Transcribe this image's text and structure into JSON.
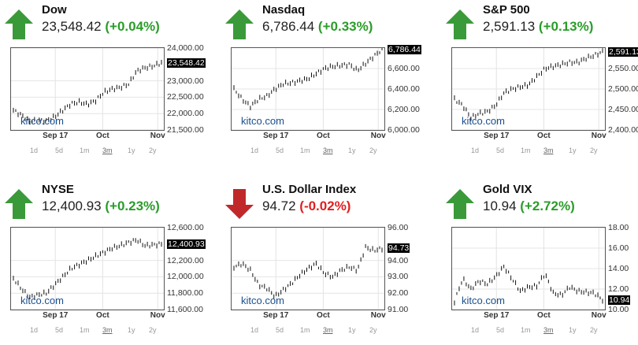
{
  "colors": {
    "up": "#2a9d2a",
    "down": "#e02020",
    "arrow_up": "#3a9a3a",
    "arrow_down": "#c0282a"
  },
  "ranges": [
    "1d",
    "5d",
    "1m",
    "3m",
    "1y",
    "2y"
  ],
  "selected_range": "3m",
  "logo": "kitco.com",
  "panels": [
    {
      "title": "Dow",
      "price": "23,548.42",
      "change": "(+0.04%)",
      "direction": "up",
      "chart_data": {
        "type": "ohlc",
        "ylim": [
          21500,
          24000
        ],
        "yticks": [
          "24,000.00",
          "23,000.00",
          "22,500.00",
          "22,000.00",
          "21,500.00"
        ],
        "ytick_values": [
          24000,
          23000,
          22500,
          22000,
          21500
        ],
        "last_label": "23,548.42",
        "last": 23548.42,
        "xticks": [
          "Sep 17",
          "Oct",
          "Nov"
        ],
        "values": [
          22100,
          21950,
          21750,
          21800,
          21780,
          21900,
          22100,
          22300,
          22350,
          22280,
          22400,
          22650,
          22750,
          22800,
          22900,
          23300,
          23400,
          23450,
          23548
        ]
      }
    },
    {
      "title": "Nasdaq",
      "price": "6,786.44",
      "change": "(+0.33%)",
      "direction": "up",
      "chart_data": {
        "type": "ohlc",
        "ylim": [
          6000,
          6800
        ],
        "yticks": [
          "6,600.00",
          "6,400.00",
          "6,200.00",
          "6,000.00"
        ],
        "ytick_values": [
          6600,
          6400,
          6200,
          6000
        ],
        "last_label": "6,786.44",
        "last": 6786.44,
        "xticks": [
          "Sep 17",
          "Oct",
          "Nov"
        ],
        "values": [
          6400,
          6300,
          6230,
          6300,
          6330,
          6400,
          6450,
          6460,
          6480,
          6500,
          6550,
          6600,
          6620,
          6630,
          6640,
          6580,
          6650,
          6720,
          6786
        ]
      }
    },
    {
      "title": "S&P 500",
      "price": "2,591.13",
      "change": "(+0.13%)",
      "direction": "up",
      "chart_data": {
        "type": "ohlc",
        "ylim": [
          2400,
          2600
        ],
        "yticks": [
          "2,550.00",
          "2,500.00",
          "2,450.00",
          "2,400.00"
        ],
        "ytick_values": [
          2550,
          2500,
          2450,
          2400
        ],
        "last_label": "2,591.13",
        "last": 2591.13,
        "xticks": [
          "Sep 17",
          "Oct",
          "Nov"
        ],
        "values": [
          2475,
          2460,
          2430,
          2440,
          2445,
          2460,
          2490,
          2500,
          2505,
          2510,
          2530,
          2550,
          2555,
          2560,
          2565,
          2565,
          2575,
          2582,
          2591
        ]
      }
    },
    {
      "title": "NYSE",
      "price": "12,400.93",
      "change": "(+0.23%)",
      "direction": "up",
      "chart_data": {
        "type": "ohlc",
        "ylim": [
          11600,
          12600
        ],
        "yticks": [
          "12,600.00",
          "12,200.00",
          "12,000.00",
          "11,800.00",
          "11,600.00"
        ],
        "ytick_values": [
          12600,
          12200,
          12000,
          11800,
          11600
        ],
        "last_label": "12,400.93",
        "last": 12400.93,
        "xticks": [
          "Sep 17",
          "Oct",
          "Nov"
        ],
        "values": [
          11980,
          11850,
          11750,
          11780,
          11800,
          11900,
          12000,
          12100,
          12150,
          12200,
          12250,
          12300,
          12350,
          12380,
          12420,
          12450,
          12380,
          12390,
          12401
        ]
      }
    },
    {
      "title": "U.S. Dollar Index",
      "price": "94.72",
      "change": "(-0.02%)",
      "direction": "down",
      "chart_data": {
        "type": "ohlc",
        "ylim": [
          91,
          96
        ],
        "yticks": [
          "96.00",
          "94.00",
          "93.00",
          "92.00",
          "91.00"
        ],
        "ytick_values": [
          96,
          94,
          93,
          92,
          91
        ],
        "last_label": "94.73",
        "last": 94.73,
        "xticks": [
          "Sep 17",
          "Oct",
          "Nov"
        ],
        "values": [
          93.6,
          93.8,
          93.4,
          92.5,
          92.3,
          91.8,
          92.2,
          92.6,
          93.1,
          93.5,
          93.8,
          93.2,
          93.0,
          93.4,
          93.6,
          93.4,
          94.8,
          94.6,
          94.73
        ]
      }
    },
    {
      "title": "Gold VIX",
      "price": "10.94",
      "change": "(+2.72%)",
      "direction": "up",
      "chart_data": {
        "type": "ohlc",
        "ylim": [
          10,
          18
        ],
        "yticks": [
          "18.00",
          "16.00",
          "14.00",
          "12.00",
          "10.00"
        ],
        "ytick_values": [
          18,
          16,
          14,
          12,
          10
        ],
        "last_label": "10.94",
        "last": 10.94,
        "xticks": [
          "Sep 17",
          "Oct",
          "Nov"
        ],
        "values": [
          10.8,
          13.0,
          12.0,
          12.8,
          12.5,
          13.2,
          14.2,
          13.0,
          11.8,
          12.2,
          12.3,
          13.5,
          11.6,
          11.4,
          12.2,
          11.8,
          11.7,
          11.6,
          10.94
        ]
      }
    }
  ]
}
